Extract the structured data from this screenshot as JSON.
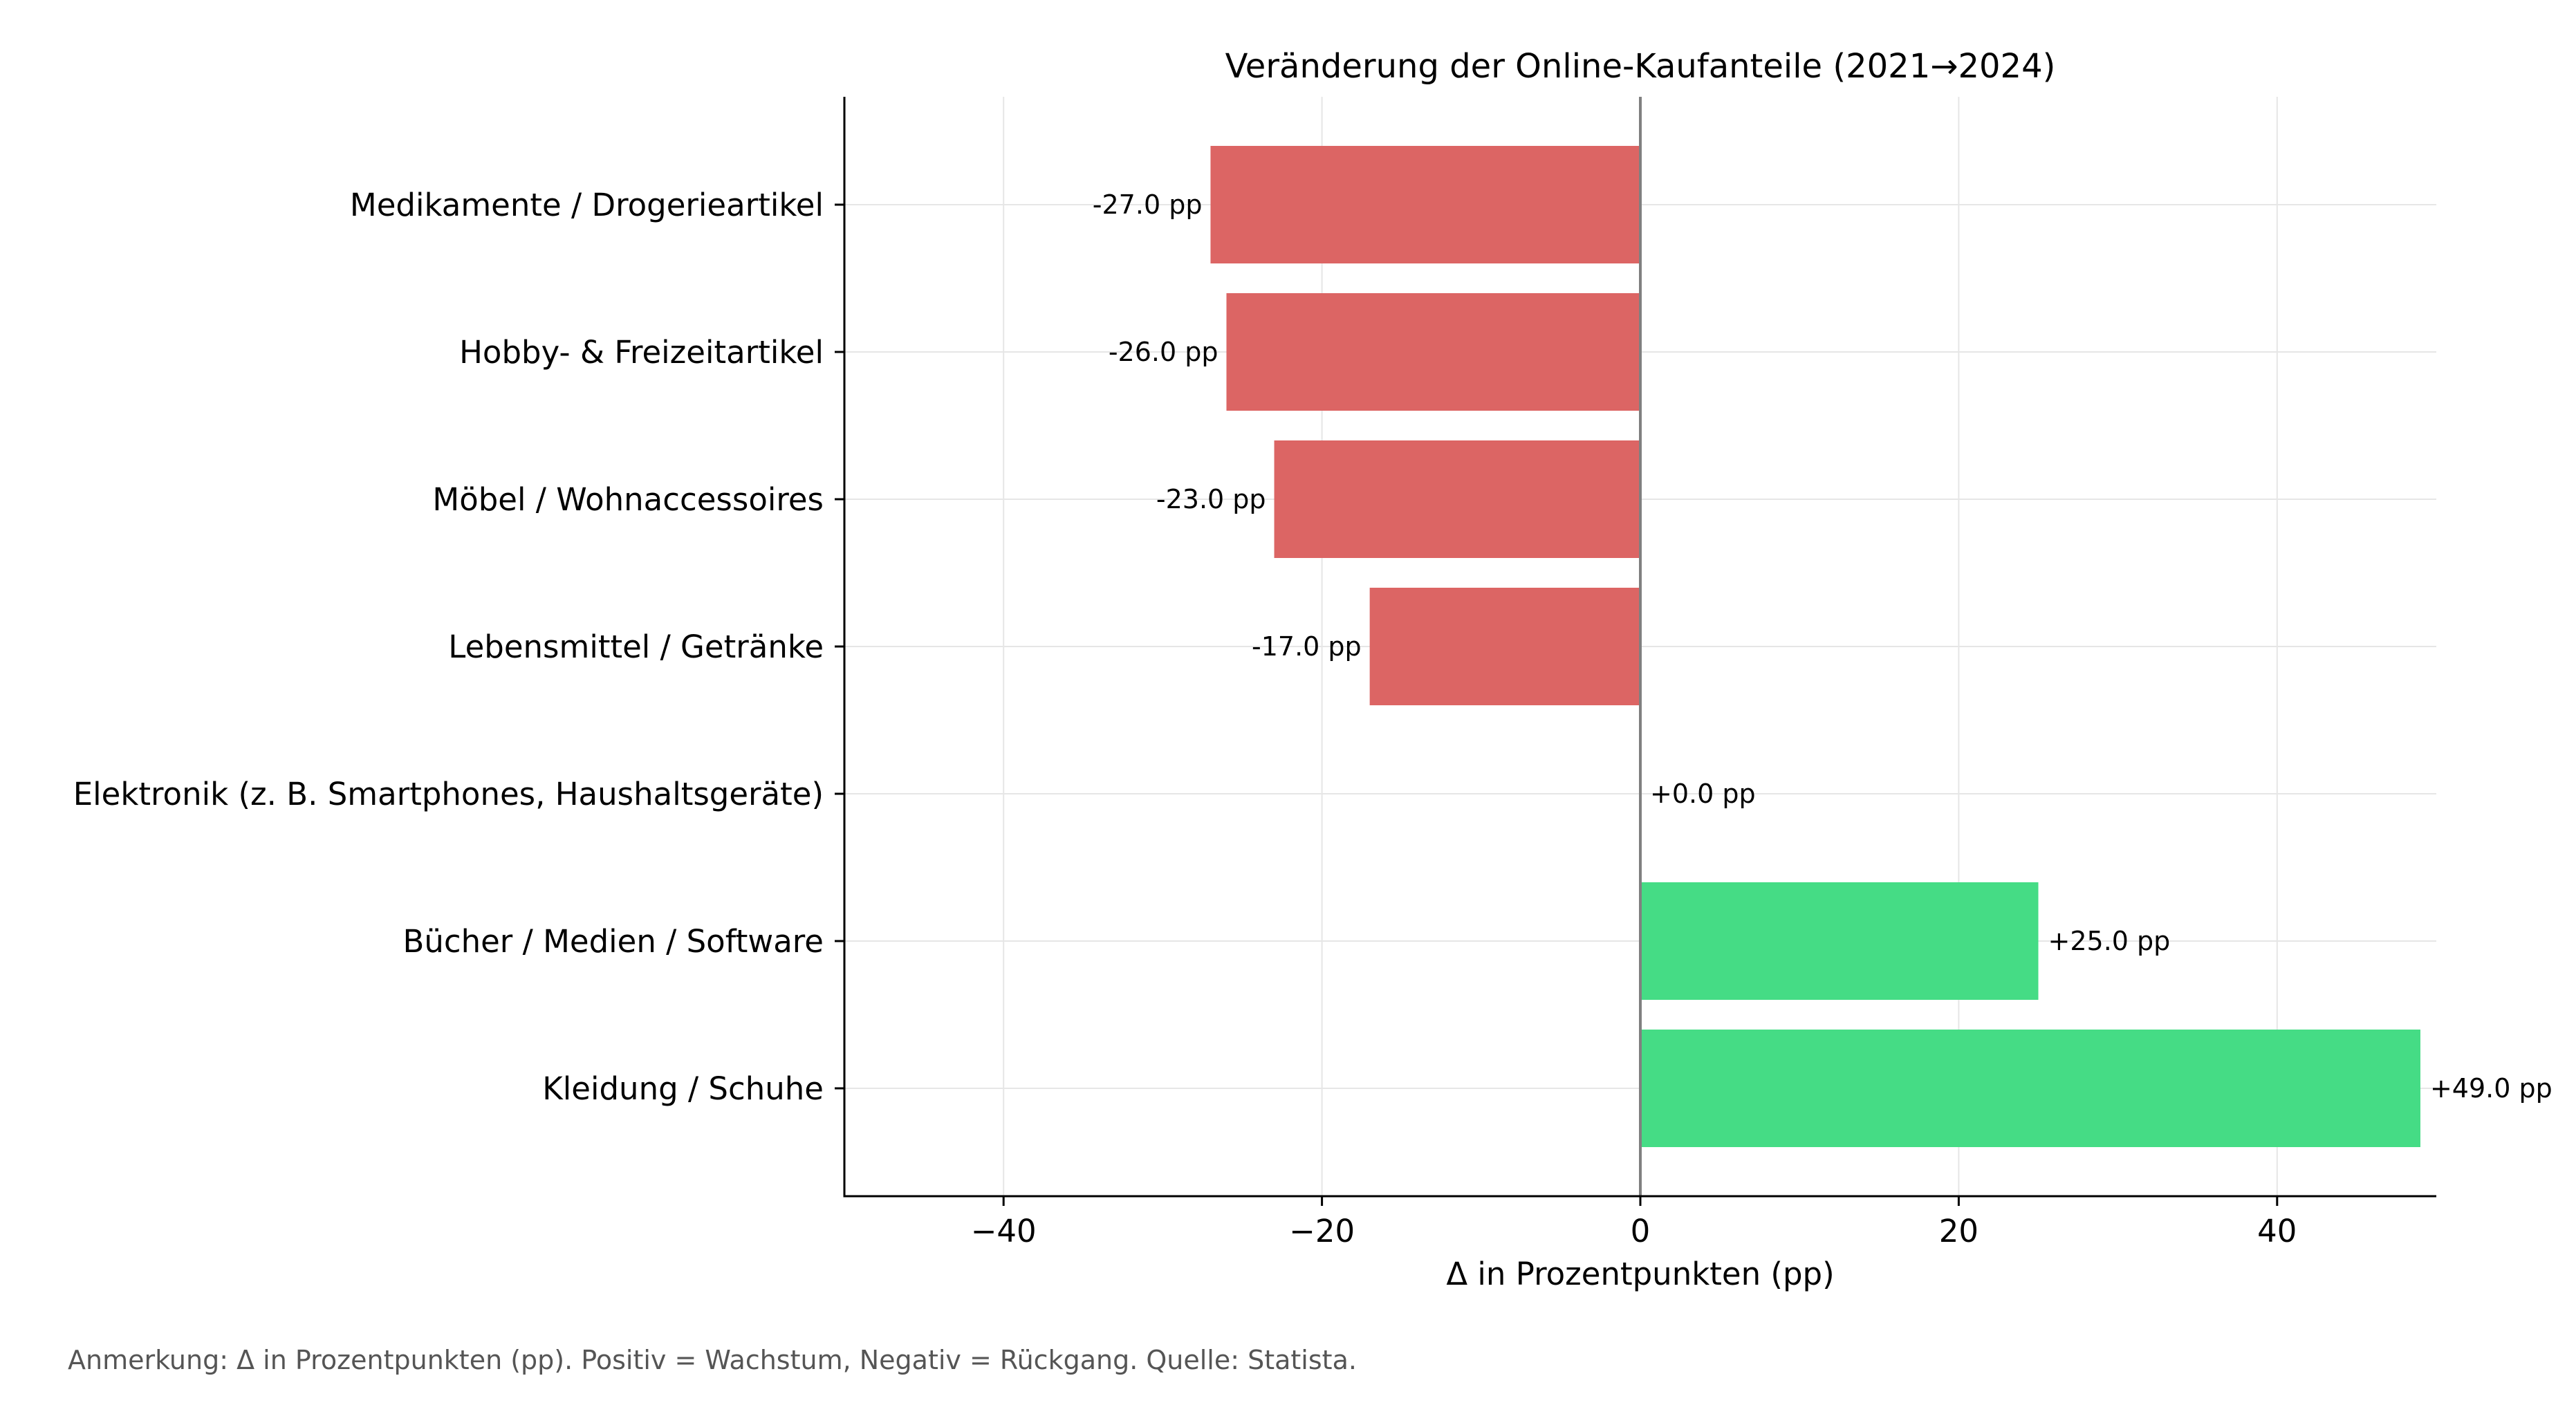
{
  "chart_data": {
    "type": "bar",
    "orientation": "horizontal",
    "title": "Veränderung der Online-Kaufanteile (2021→2024)",
    "xlabel": "Δ in Prozentpunkten (pp)",
    "ylabel": "",
    "xlim": [
      -50,
      50
    ],
    "xticks": [
      -40,
      -20,
      0,
      20,
      40
    ],
    "xtick_labels": [
      "−40",
      "−20",
      "0",
      "20",
      "40"
    ],
    "grid": true,
    "categories": [
      "Medikamente / Drogerieartikel",
      "Hobby- & Freizeitartikel",
      "Möbel / Wohnaccessoires",
      "Lebensmittel / Getränke",
      "Elektronik (z. B. Smartphones, Haushaltsgeräte)",
      "Bücher / Medien / Software",
      "Kleidung / Schuhe"
    ],
    "values": [
      -27.0,
      -26.0,
      -23.0,
      -17.0,
      0.0,
      25.0,
      49.0
    ],
    "value_labels": [
      "-27.0 pp",
      "-26.0 pp",
      "-23.0 pp",
      "-17.0 pp",
      "+0.0 pp",
      "+25.0 pp",
      "+49.0 pp"
    ],
    "colors": {
      "negative": "#dc6564",
      "positive": "#45dc85"
    }
  },
  "footnote": "Anmerkung: Δ in Prozentpunkten (pp). Positiv = Wachstum, Negativ = Rückgang. Quelle: Statista."
}
